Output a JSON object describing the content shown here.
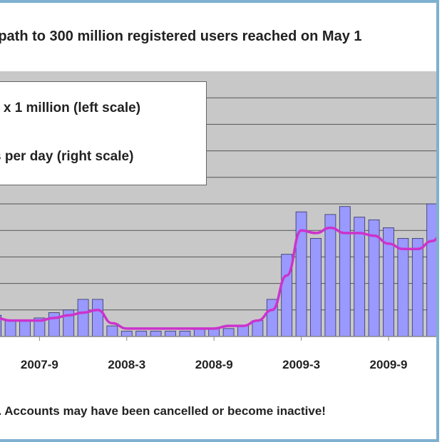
{
  "title": "r path to 300 million registered users reached on May 1",
  "legend": {
    "items": [
      {
        "label": "s x 1 million (left scale)",
        "color": "#9999ff"
      },
      {
        "label": "s per day (right scale)",
        "color": "#cc33cc"
      }
    ]
  },
  "footnote": "s. Accounts may have been cancelled or become inactive!",
  "chart_data": {
    "type": "bar",
    "categories": [
      "2007-6",
      "2007-7",
      "2007-8",
      "2007-9",
      "2007-10",
      "2007-11",
      "2007-12",
      "2008-1",
      "2008-2",
      "2008-3",
      "2008-4",
      "2008-5",
      "2008-6",
      "2008-7",
      "2008-8",
      "2008-9",
      "2008-10",
      "2008-11",
      "2008-12",
      "2009-1",
      "2009-2",
      "2009-3",
      "2009-4",
      "2009-5",
      "2009-6",
      "2009-7",
      "2009-8",
      "2009-9",
      "2009-10",
      "2009-11",
      "2009-12",
      "2010-1",
      "2010-2"
    ],
    "x_tick_labels": [
      "2007-9",
      "2008-3",
      "2008-9",
      "2009-3",
      "2009-9"
    ],
    "series": [
      {
        "type": "bar",
        "color": "#9999ff",
        "values": [
          0.8,
          0.6,
          0.6,
          0.7,
          0.9,
          1.0,
          1.4,
          1.4,
          0.4,
          0.2,
          0.2,
          0.2,
          0.2,
          0.2,
          0.3,
          0.3,
          0.3,
          0.4,
          0.6,
          1.4,
          3.1,
          4.7,
          3.7,
          4.6,
          4.9,
          4.5,
          4.4,
          4.1,
          3.7,
          3.7,
          5.0,
          4.4,
          4.6
        ]
      },
      {
        "type": "line",
        "color": "#cc33cc",
        "values": [
          0.7,
          0.6,
          0.6,
          0.6,
          0.7,
          0.8,
          0.9,
          1.0,
          0.5,
          0.3,
          0.3,
          0.3,
          0.3,
          0.3,
          0.3,
          0.3,
          0.4,
          0.4,
          0.6,
          1.0,
          2.3,
          4.0,
          3.9,
          4.1,
          3.9,
          3.9,
          3.8,
          3.5,
          3.3,
          3.3,
          3.6,
          4.2,
          4.3
        ]
      }
    ],
    "ylim": [
      0,
      10
    ],
    "grid": true,
    "legend_position": "top-left"
  }
}
